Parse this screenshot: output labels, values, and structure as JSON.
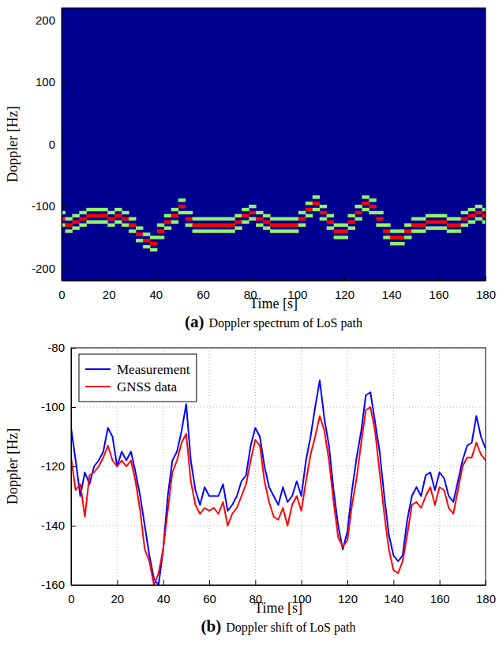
{
  "chart_data": [
    {
      "type": "heatmap",
      "panel": "(a)",
      "title": "Doppler spectrum of LoS path",
      "xlabel": "Time [s]",
      "ylabel": "Doppler [Hz]",
      "xlim": [
        0,
        180
      ],
      "xticks": [
        0,
        20,
        40,
        60,
        80,
        100,
        120,
        140,
        160,
        180
      ],
      "ylim": [
        -220,
        220
      ],
      "yticks": [
        -200,
        -100,
        0,
        100,
        200
      ],
      "zlim": [
        0,
        1
      ],
      "cells": [
        [
          0,
          -130,
          0.65
        ],
        [
          0,
          -120,
          1
        ],
        [
          0,
          -110,
          0.65
        ],
        [
          3,
          -140,
          0.65
        ],
        [
          3,
          -130,
          1
        ],
        [
          3,
          -120,
          0.65
        ],
        [
          6,
          -135,
          0.65
        ],
        [
          6,
          -125,
          1
        ],
        [
          6,
          -115,
          0.65
        ],
        [
          9,
          -130,
          0.65
        ],
        [
          9,
          -120,
          1
        ],
        [
          9,
          -110,
          0.65
        ],
        [
          12,
          -125,
          0.65
        ],
        [
          12,
          -115,
          1
        ],
        [
          12,
          -105,
          0.65
        ],
        [
          15,
          -125,
          0.65
        ],
        [
          15,
          -115,
          1
        ],
        [
          15,
          -105,
          0.65
        ],
        [
          18,
          -125,
          0.65
        ],
        [
          18,
          -115,
          1
        ],
        [
          18,
          -105,
          0.65
        ],
        [
          21,
          -130,
          0.65
        ],
        [
          21,
          -120,
          1
        ],
        [
          21,
          -110,
          0.65
        ],
        [
          24,
          -125,
          0.65
        ],
        [
          24,
          -115,
          1
        ],
        [
          24,
          -105,
          0.65
        ],
        [
          27,
          -130,
          0.65
        ],
        [
          27,
          -120,
          1
        ],
        [
          27,
          -110,
          0.65
        ],
        [
          30,
          -140,
          0.65
        ],
        [
          30,
          -130,
          1
        ],
        [
          30,
          -120,
          0.65
        ],
        [
          33,
          -155,
          0.65
        ],
        [
          33,
          -145,
          1
        ],
        [
          33,
          -135,
          0.65
        ],
        [
          36,
          -165,
          0.65
        ],
        [
          36,
          -155,
          1
        ],
        [
          36,
          -145,
          0.65
        ],
        [
          39,
          -170,
          0.65
        ],
        [
          39,
          -160,
          1
        ],
        [
          39,
          -150,
          0.65
        ],
        [
          42,
          -150,
          0.65
        ],
        [
          42,
          -140,
          1
        ],
        [
          42,
          -130,
          0.65
        ],
        [
          45,
          -135,
          0.65
        ],
        [
          45,
          -125,
          1
        ],
        [
          45,
          -115,
          0.65
        ],
        [
          48,
          -125,
          0.65
        ],
        [
          48,
          -115,
          1
        ],
        [
          48,
          -105,
          0.65
        ],
        [
          51,
          -110,
          0.65
        ],
        [
          51,
          -100,
          1
        ],
        [
          51,
          -90,
          0.65
        ],
        [
          54,
          -130,
          0.65
        ],
        [
          54,
          -120,
          1
        ],
        [
          54,
          -110,
          0.65
        ],
        [
          57,
          -140,
          0.65
        ],
        [
          57,
          -130,
          1
        ],
        [
          57,
          -120,
          0.65
        ],
        [
          60,
          -140,
          0.65
        ],
        [
          60,
          -130,
          1
        ],
        [
          60,
          -120,
          0.65
        ],
        [
          63,
          -140,
          0.65
        ],
        [
          63,
          -130,
          1
        ],
        [
          63,
          -120,
          0.65
        ],
        [
          66,
          -140,
          0.65
        ],
        [
          66,
          -130,
          1
        ],
        [
          66,
          -120,
          0.65
        ],
        [
          69,
          -140,
          0.65
        ],
        [
          69,
          -130,
          1
        ],
        [
          69,
          -120,
          0.65
        ],
        [
          72,
          -140,
          0.65
        ],
        [
          72,
          -130,
          1
        ],
        [
          72,
          -120,
          0.65
        ],
        [
          75,
          -135,
          0.65
        ],
        [
          75,
          -125,
          1
        ],
        [
          75,
          -115,
          0.65
        ],
        [
          78,
          -125,
          0.65
        ],
        [
          78,
          -115,
          1
        ],
        [
          78,
          -105,
          0.65
        ],
        [
          81,
          -120,
          0.65
        ],
        [
          81,
          -110,
          1
        ],
        [
          81,
          -100,
          0.65
        ],
        [
          84,
          -130,
          0.65
        ],
        [
          84,
          -120,
          1
        ],
        [
          84,
          -110,
          0.65
        ],
        [
          87,
          -135,
          0.65
        ],
        [
          87,
          -125,
          1
        ],
        [
          87,
          -115,
          0.65
        ],
        [
          90,
          -140,
          0.65
        ],
        [
          90,
          -130,
          1
        ],
        [
          90,
          -120,
          0.65
        ],
        [
          93,
          -140,
          0.65
        ],
        [
          93,
          -130,
          1
        ],
        [
          93,
          -120,
          0.65
        ],
        [
          96,
          -140,
          0.65
        ],
        [
          96,
          -130,
          1
        ],
        [
          96,
          -120,
          0.65
        ],
        [
          99,
          -140,
          0.65
        ],
        [
          99,
          -130,
          1
        ],
        [
          99,
          -120,
          0.65
        ],
        [
          102,
          -130,
          0.65
        ],
        [
          102,
          -120,
          1
        ],
        [
          102,
          -110,
          0.65
        ],
        [
          105,
          -115,
          0.65
        ],
        [
          105,
          -105,
          1
        ],
        [
          105,
          -95,
          0.65
        ],
        [
          108,
          -105,
          0.65
        ],
        [
          108,
          -95,
          1
        ],
        [
          108,
          -85,
          0.65
        ],
        [
          111,
          -120,
          0.65
        ],
        [
          111,
          -110,
          1
        ],
        [
          111,
          -100,
          0.65
        ],
        [
          114,
          -135,
          0.65
        ],
        [
          114,
          -125,
          1
        ],
        [
          114,
          -115,
          0.65
        ],
        [
          117,
          -150,
          0.65
        ],
        [
          117,
          -140,
          1
        ],
        [
          117,
          -130,
          0.65
        ],
        [
          120,
          -150,
          0.65
        ],
        [
          120,
          -140,
          1
        ],
        [
          120,
          -130,
          0.65
        ],
        [
          123,
          -135,
          0.65
        ],
        [
          123,
          -125,
          1
        ],
        [
          123,
          -115,
          0.65
        ],
        [
          126,
          -120,
          0.65
        ],
        [
          126,
          -110,
          1
        ],
        [
          126,
          -100,
          0.65
        ],
        [
          129,
          -105,
          0.65
        ],
        [
          129,
          -95,
          1
        ],
        [
          129,
          -85,
          0.65
        ],
        [
          132,
          -110,
          0.65
        ],
        [
          132,
          -100,
          1
        ],
        [
          132,
          -90,
          0.65
        ],
        [
          135,
          -130,
          0.65
        ],
        [
          135,
          -120,
          1
        ],
        [
          135,
          -110,
          0.65
        ],
        [
          138,
          -150,
          0.65
        ],
        [
          138,
          -140,
          1
        ],
        [
          138,
          -130,
          0.65
        ],
        [
          141,
          -160,
          0.65
        ],
        [
          141,
          -150,
          1
        ],
        [
          141,
          -140,
          0.65
        ],
        [
          144,
          -160,
          0.65
        ],
        [
          144,
          -150,
          1
        ],
        [
          144,
          -140,
          0.65
        ],
        [
          147,
          -150,
          0.65
        ],
        [
          147,
          -140,
          1
        ],
        [
          147,
          -130,
          0.65
        ],
        [
          150,
          -140,
          0.65
        ],
        [
          150,
          -130,
          1
        ],
        [
          150,
          -120,
          0.65
        ],
        [
          153,
          -140,
          0.65
        ],
        [
          153,
          -130,
          1
        ],
        [
          153,
          -120,
          0.65
        ],
        [
          156,
          -135,
          0.65
        ],
        [
          156,
          -125,
          1
        ],
        [
          156,
          -115,
          0.65
        ],
        [
          159,
          -135,
          0.65
        ],
        [
          159,
          -125,
          1
        ],
        [
          159,
          -115,
          0.65
        ],
        [
          162,
          -135,
          0.65
        ],
        [
          162,
          -125,
          1
        ],
        [
          162,
          -115,
          0.65
        ],
        [
          165,
          -140,
          0.65
        ],
        [
          165,
          -130,
          1
        ],
        [
          165,
          -120,
          0.65
        ],
        [
          168,
          -140,
          0.65
        ],
        [
          168,
          -130,
          1
        ],
        [
          168,
          -120,
          0.65
        ],
        [
          171,
          -130,
          0.65
        ],
        [
          171,
          -120,
          1
        ],
        [
          171,
          -110,
          0.65
        ],
        [
          174,
          -125,
          0.65
        ],
        [
          174,
          -115,
          1
        ],
        [
          174,
          -105,
          0.65
        ],
        [
          177,
          -120,
          0.65
        ],
        [
          177,
          -110,
          1
        ],
        [
          177,
          -100,
          0.65
        ],
        [
          180,
          -125,
          0.65
        ],
        [
          180,
          -115,
          1
        ],
        [
          180,
          -105,
          0.65
        ]
      ]
    },
    {
      "type": "line",
      "panel": "(b)",
      "title": "Doppler shift of LoS path",
      "xlabel": "Time [s]",
      "ylabel": "Doppler [Hz]",
      "xlim": [
        0,
        180
      ],
      "xticks": [
        0,
        20,
        40,
        60,
        80,
        100,
        120,
        140,
        160,
        180
      ],
      "ylim": [
        -160,
        -80
      ],
      "yticks": [
        -160,
        -140,
        -120,
        -100,
        -80
      ],
      "grid": true,
      "legend": "upper left",
      "x": [
        0,
        2,
        4,
        6,
        8,
        10,
        12,
        14,
        16,
        18,
        20,
        22,
        24,
        26,
        28,
        30,
        32,
        34,
        36,
        38,
        40,
        42,
        44,
        46,
        48,
        50,
        52,
        54,
        56,
        58,
        60,
        62,
        64,
        66,
        68,
        70,
        72,
        74,
        76,
        78,
        80,
        82,
        84,
        86,
        88,
        90,
        92,
        94,
        96,
        98,
        100,
        102,
        104,
        106,
        108,
        110,
        112,
        114,
        116,
        118,
        120,
        122,
        124,
        126,
        128,
        130,
        132,
        134,
        136,
        138,
        140,
        142,
        144,
        146,
        148,
        150,
        152,
        154,
        156,
        158,
        160,
        162,
        164,
        166,
        168,
        170,
        172,
        174,
        176,
        178,
        180
      ],
      "series": [
        {
          "name": "Measurement",
          "color": "#0000ff",
          "values": [
            -107,
            -118,
            -130,
            -122,
            -126,
            -120,
            -118,
            -115,
            -107,
            -110,
            -120,
            -115,
            -118,
            -115,
            -122,
            -130,
            -140,
            -150,
            -158,
            -160,
            -148,
            -130,
            -118,
            -115,
            -108,
            -99,
            -118,
            -128,
            -133,
            -127,
            -130,
            -130,
            -130,
            -126,
            -135,
            -133,
            -130,
            -125,
            -123,
            -113,
            -107,
            -110,
            -120,
            -127,
            -130,
            -133,
            -127,
            -132,
            -130,
            -125,
            -130,
            -118,
            -110,
            -100,
            -91,
            -104,
            -113,
            -128,
            -140,
            -148,
            -142,
            -128,
            -117,
            -108,
            -96,
            -95,
            -105,
            -115,
            -130,
            -143,
            -150,
            -152,
            -150,
            -138,
            -130,
            -127,
            -130,
            -123,
            -122,
            -128,
            -122,
            -124,
            -130,
            -132,
            -125,
            -118,
            -113,
            -112,
            -103,
            -110,
            -114
          ]
        },
        {
          "name": "GNSS data",
          "color": "#ff0000",
          "values": [
            -117,
            -128,
            -126,
            -137,
            -123,
            -122,
            -120,
            -117,
            -113,
            -118,
            -120,
            -118,
            -120,
            -118,
            -125,
            -135,
            -148,
            -152,
            -160,
            -156,
            -148,
            -135,
            -122,
            -118,
            -112,
            -109,
            -125,
            -133,
            -136,
            -134,
            -135,
            -134,
            -136,
            -132,
            -140,
            -136,
            -134,
            -130,
            -126,
            -118,
            -111,
            -113,
            -125,
            -132,
            -137,
            -138,
            -134,
            -140,
            -133,
            -130,
            -135,
            -125,
            -116,
            -110,
            -103,
            -108,
            -118,
            -132,
            -144,
            -147,
            -145,
            -133,
            -124,
            -112,
            -101,
            -100,
            -108,
            -122,
            -136,
            -148,
            -155,
            -156,
            -152,
            -143,
            -133,
            -132,
            -134,
            -130,
            -127,
            -133,
            -127,
            -128,
            -134,
            -136,
            -128,
            -120,
            -117,
            -117,
            -112,
            -116,
            -118
          ]
        }
      ]
    }
  ]
}
